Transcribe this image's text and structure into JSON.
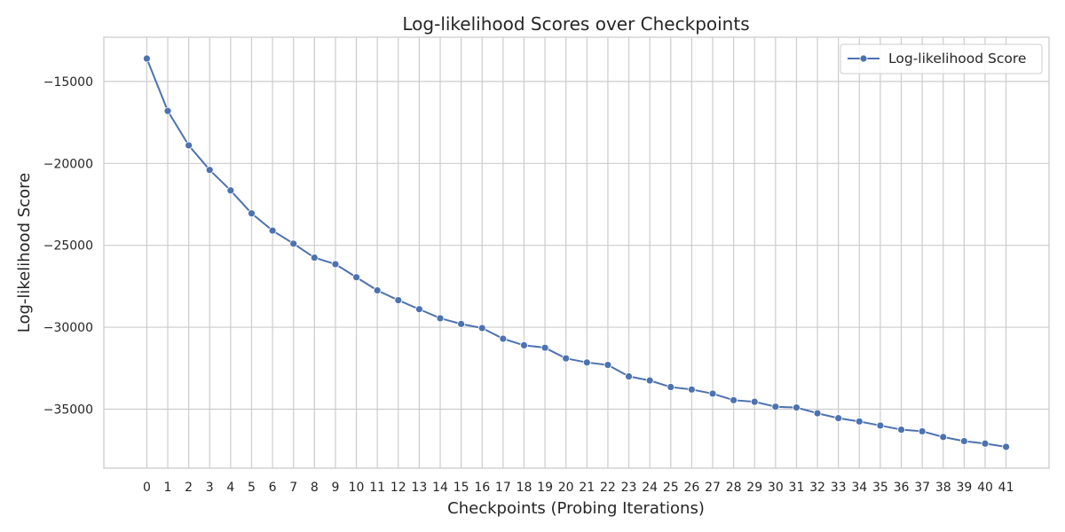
{
  "chart_data": {
    "type": "line",
    "title": "Log-likelihood Scores over Checkpoints",
    "xlabel": "Checkpoints (Probing Iterations)",
    "ylabel": "Log-likelihood Score",
    "x": [
      0,
      1,
      2,
      3,
      4,
      5,
      6,
      7,
      8,
      9,
      10,
      11,
      12,
      13,
      14,
      15,
      16,
      17,
      18,
      19,
      20,
      21,
      22,
      23,
      24,
      25,
      26,
      27,
      28,
      29,
      30,
      31,
      32,
      33,
      34,
      35,
      36,
      37,
      38,
      39,
      40,
      41
    ],
    "series": [
      {
        "name": "Log-likelihood Score",
        "color": "#4c72b0",
        "marker": "circle",
        "values": [
          -13600,
          -16800,
          -18900,
          -20400,
          -21650,
          -23050,
          -24100,
          -24900,
          -25750,
          -26150,
          -26950,
          -27750,
          -28350,
          -28900,
          -29450,
          -29800,
          -30050,
          -30700,
          -31100,
          -31250,
          -31900,
          -32150,
          -32300,
          -33000,
          -33250,
          -33650,
          -33800,
          -34050,
          -34450,
          -34550,
          -34850,
          -34900,
          -35250,
          -35550,
          -35750,
          -36000,
          -36250,
          -36350,
          -36700,
          -36950,
          -37100,
          -37300
        ]
      }
    ],
    "yticks": [
      -35000,
      -30000,
      -25000,
      -20000,
      -15000
    ],
    "ytick_labels": [
      "−35000",
      "−30000",
      "−25000",
      "−20000",
      "−15000"
    ],
    "xlim": [
      -2.05,
      43.05
    ],
    "ylim": [
      -38600,
      -12300
    ],
    "grid": true,
    "legend_position": "top-right"
  }
}
